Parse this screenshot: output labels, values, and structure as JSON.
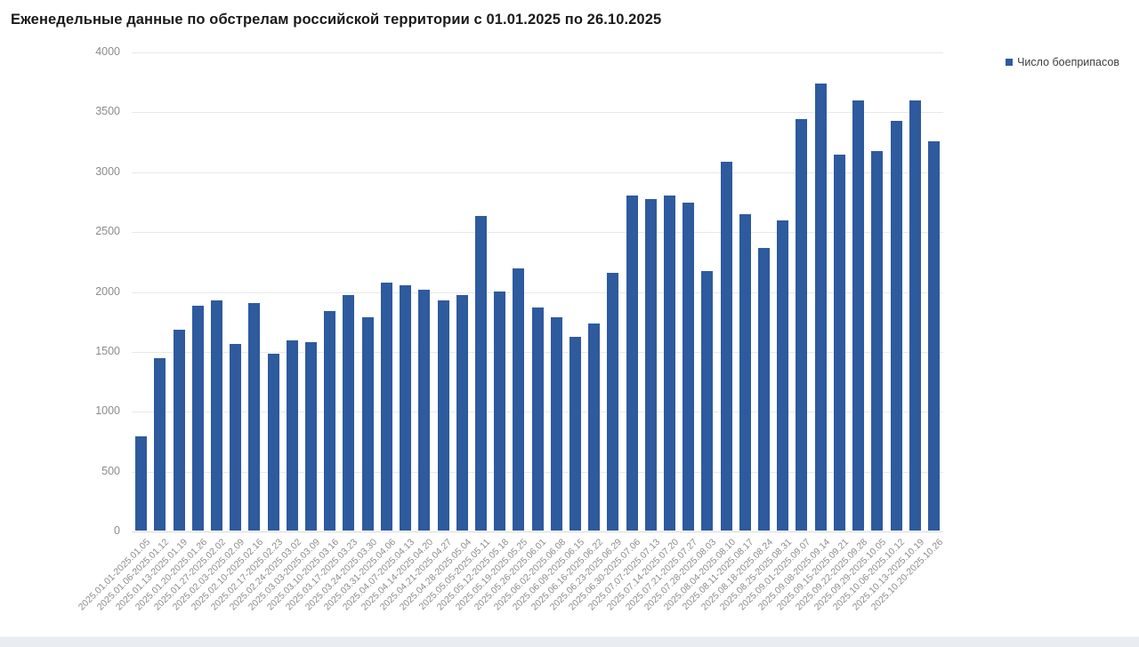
{
  "header": {
    "title": "Еженедельные данные по обстрелам российской территории с 01.01.2025 по 26.10.2025"
  },
  "legend": {
    "label": "Число боеприпасов",
    "marker_color": "#2e5a9e",
    "position": "top-right"
  },
  "colors": {
    "bar": "#2e5a9e",
    "title_text": "#1a1a1a",
    "axis_text": "#8c8c8c",
    "gridline": "#e8e8e8",
    "footer_band": "#e9edf2",
    "background": "#ffffff"
  },
  "chart_data": {
    "type": "bar",
    "title": "Еженедельные данные по обстрелам российской территории с 01.01.2025 по 26.10.2025",
    "xlabel": "",
    "ylabel": "",
    "ylim": [
      0,
      4000
    ],
    "yticks": [
      0,
      500,
      1000,
      1500,
      2000,
      2500,
      3000,
      3500,
      4000
    ],
    "grid": true,
    "legend_entries": [
      "Число боеприпасов"
    ],
    "legend_position": "top-right",
    "categories": [
      "2025.01.01-2025.01.05",
      "2025.01.06-2025.01.12",
      "2025.01.13-2025.01.19",
      "2025.01.20-2025.01.26",
      "2025.01.27-2025.02.02",
      "2025.02.03-2025.02.09",
      "2025.02.10-2025.02.16",
      "2025.02.17-2025.02.23",
      "2025.02.24-2025.03.02",
      "2025.03.03-2025.03.09",
      "2025.03.10-2025.03.16",
      "2025.03.17-2025.03.23",
      "2025.03.24-2025.03.30",
      "2025.03.31-2025.04.06",
      "2025.04.07-2025.04.13",
      "2025.04.14-2025.04.20",
      "2025.04.21-2025.04.27",
      "2025.04.28-2025.05.04",
      "2025.05.05-2025.05.11",
      "2025.05.12-2025.05.18",
      "2025.05.19-2025.05.25",
      "2025.05.26-2025.06.01",
      "2025.06.02-2025.06.08",
      "2025.06.09-2025.06.15",
      "2025.06.16-2025.06.22",
      "2025.06.23-2025.06.29",
      "2025.06.30-2025.07.06",
      "2025.07.07-2025.07.13",
      "2025.07.14-2025.07.20",
      "2025.07.21-2025.07.27",
      "2025.07.28-2025.08.03",
      "2025.08.04-2025.08.10",
      "2025.08.11-2025.08.17",
      "2025.08.18-2025.08.24",
      "2025.08.25-2025.08.31",
      "2025.09.01-2025.09.07",
      "2025.09.08-2025.09.14",
      "2025.09.15-2025.09.21",
      "2025.09.22-2025.09.28",
      "2025.09.29-2025.10.05",
      "2025.10.06-2025.10.12",
      "2025.10.13-2025.10.19",
      "2025.10.20-2025.10.26"
    ],
    "series": [
      {
        "name": "Число боеприпасов",
        "values": [
          790,
          1440,
          1680,
          1880,
          1920,
          1560,
          1900,
          1480,
          1590,
          1570,
          1830,
          1970,
          1780,
          2070,
          2050,
          2010,
          1920,
          1970,
          2630,
          2000,
          2190,
          1860,
          1780,
          1620,
          1730,
          2150,
          2800,
          2770,
          2800,
          2740,
          2170,
          3080,
          2640,
          2360,
          2590,
          3440,
          3730,
          3140,
          3590,
          3170,
          3420,
          3590,
          3250
        ]
      }
    ]
  }
}
